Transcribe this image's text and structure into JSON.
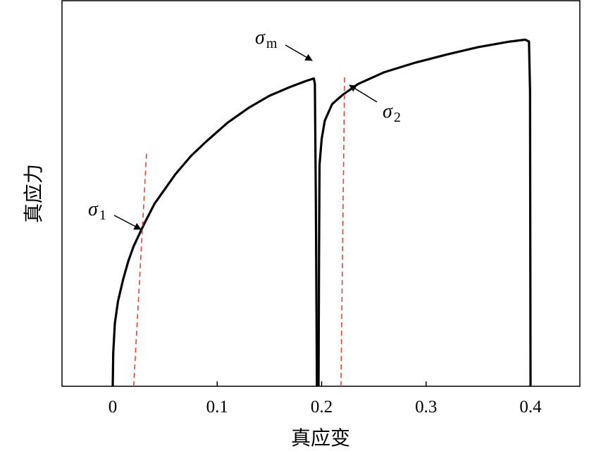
{
  "chart_data": {
    "type": "line",
    "xlabel": "真应变",
    "ylabel": "真应力",
    "xlim": [
      -0.05,
      0.45
    ],
    "ylim": [
      0,
      1.0
    ],
    "xticks": [
      0,
      0.1,
      0.2,
      0.3,
      0.4
    ],
    "xtick_labels": [
      "0",
      "0.1",
      "0.2",
      "0.3",
      "0.4"
    ],
    "grid": false,
    "series": [
      {
        "color": "#000000",
        "style": "solid",
        "points": [
          [
            0.0,
            0.0
          ],
          [
            0.0005,
            0.09
          ],
          [
            0.002,
            0.17
          ],
          [
            0.005,
            0.23
          ],
          [
            0.01,
            0.29
          ],
          [
            0.015,
            0.34
          ],
          [
            0.02,
            0.38
          ],
          [
            0.03,
            0.44
          ],
          [
            0.04,
            0.495
          ],
          [
            0.05,
            0.535
          ],
          [
            0.06,
            0.575
          ],
          [
            0.075,
            0.625
          ],
          [
            0.09,
            0.665
          ],
          [
            0.11,
            0.715
          ],
          [
            0.13,
            0.755
          ],
          [
            0.15,
            0.788
          ],
          [
            0.17,
            0.812
          ],
          [
            0.185,
            0.828
          ],
          [
            0.1925,
            0.835
          ],
          [
            0.1935,
            0.82
          ],
          [
            0.1945,
            0.5
          ],
          [
            0.1955,
            0.0
          ]
        ]
      },
      {
        "color": "#000000",
        "style": "solid",
        "points": [
          [
            0.197,
            0.0
          ],
          [
            0.1975,
            0.35
          ],
          [
            0.198,
            0.6
          ],
          [
            0.2,
            0.67
          ],
          [
            0.203,
            0.72
          ],
          [
            0.21,
            0.765
          ],
          [
            0.22,
            0.79
          ],
          [
            0.235,
            0.82
          ],
          [
            0.26,
            0.852
          ],
          [
            0.29,
            0.878
          ],
          [
            0.32,
            0.9
          ],
          [
            0.35,
            0.92
          ],
          [
            0.38,
            0.935
          ],
          [
            0.395,
            0.94
          ],
          [
            0.3985,
            0.935
          ],
          [
            0.3995,
            0.8
          ],
          [
            0.4,
            0.0
          ]
        ]
      },
      {
        "color": "#e8453c",
        "style": "dashed",
        "points": [
          [
            0.02,
            0.0
          ],
          [
            0.0325,
            0.64
          ]
        ]
      },
      {
        "color": "#e8453c",
        "style": "dashed",
        "points": [
          [
            0.2185,
            0.0
          ],
          [
            0.222,
            0.84
          ]
        ]
      }
    ],
    "annotations": [
      {
        "symbol": "σ",
        "subscript": "1",
        "x": 0.028,
        "y": 0.41
      },
      {
        "symbol": "σ",
        "subscript": "m",
        "x": 0.1925,
        "y": 0.835
      },
      {
        "symbol": "σ",
        "subscript": "2",
        "x": 0.222,
        "y": 0.79
      }
    ]
  }
}
